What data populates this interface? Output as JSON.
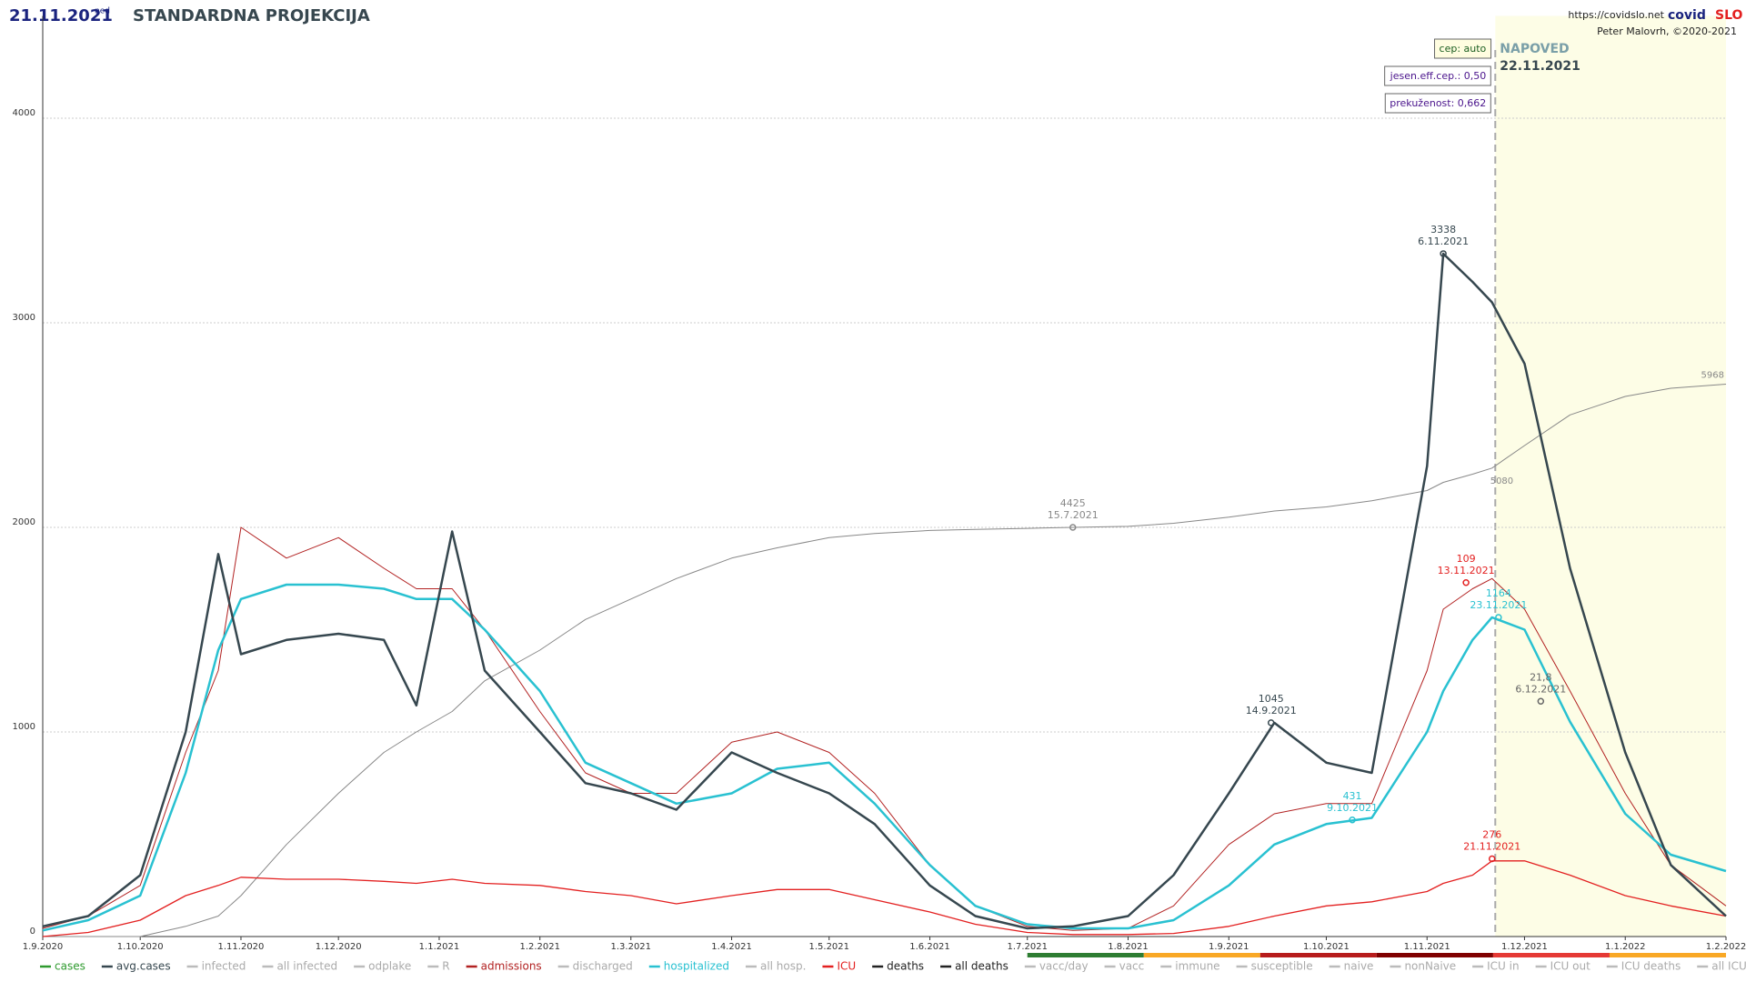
{
  "chart_data": {
    "type": "line",
    "date": "21.11.2021",
    "weekday": "ned",
    "title": "STANDARDNA PROJEKCIJA",
    "url": "https://covidslo.net",
    "brand": [
      "covid",
      "SLO"
    ],
    "author": "Peter Malovrh, ©2020-2021",
    "settings": [
      "cep: auto",
      "jesen.eff.cep.: 0,50",
      "prekuženost: 0,662"
    ],
    "forecast": {
      "label": "NAPOVED",
      "date": "22.11.2021"
    },
    "x": [
      "1.9.2020",
      "15.9.2020",
      "1.10.2020",
      "15.10.2020",
      "25.10.2020",
      "1.11.2020",
      "15.11.2020",
      "1.12.2020",
      "15.12.2020",
      "25.12.2020",
      "5.1.2021",
      "15.1.2021",
      "1.2.2021",
      "15.2.2021",
      "1.3.2021",
      "15.3.2021",
      "1.4.2021",
      "15.4.2021",
      "1.5.2021",
      "15.5.2021",
      "1.6.2021",
      "15.6.2021",
      "1.7.2021",
      "15.7.2021",
      "1.8.2021",
      "15.8.2021",
      "1.9.2021",
      "15.9.2021",
      "1.10.2021",
      "15.10.2021",
      "1.11.2021",
      "6.11.2021",
      "15.11.2021",
      "21.11.2021",
      "1.12.2021",
      "15.12.2021",
      "1.1.2022",
      "15.1.2022",
      "1.2.2022"
    ],
    "series": [
      {
        "name": "all deaths",
        "color": "#888888",
        "width": 1,
        "values": [
          0,
          0,
          0,
          50,
          100,
          200,
          450,
          700,
          900,
          1000,
          1100,
          1250,
          1400,
          1550,
          1650,
          1750,
          1850,
          1900,
          1950,
          1970,
          1985,
          1990,
          1995,
          2000,
          2005,
          2020,
          2050,
          2080,
          2100,
          2130,
          2180,
          2220,
          2260,
          2290,
          2400,
          2550,
          2640,
          2680,
          2700
        ]
      },
      {
        "name": "admissions",
        "color": "#b22222",
        "width": 1,
        "values": [
          40,
          100,
          250,
          900,
          1300,
          2000,
          1850,
          1950,
          1800,
          1700,
          1700,
          1500,
          1100,
          800,
          700,
          700,
          950,
          1000,
          900,
          700,
          350,
          150,
          50,
          30,
          40,
          150,
          450,
          600,
          650,
          650,
          1300,
          1600,
          1700,
          1750,
          1600,
          1200,
          700,
          350,
          150
        ]
      },
      {
        "name": "ICU",
        "color": "#e32020",
        "width": 1.3,
        "values": [
          0,
          20,
          80,
          200,
          250,
          290,
          280,
          280,
          270,
          260,
          280,
          260,
          250,
          220,
          200,
          160,
          200,
          230,
          230,
          180,
          120,
          60,
          20,
          10,
          10,
          15,
          50,
          100,
          150,
          170,
          220,
          260,
          300,
          370,
          370,
          300,
          200,
          150,
          100
        ]
      },
      {
        "name": "hospitalized",
        "color": "#29c1d1",
        "width": 2.5,
        "values": [
          30,
          80,
          200,
          800,
          1400,
          1650,
          1720,
          1720,
          1700,
          1650,
          1650,
          1500,
          1200,
          850,
          750,
          650,
          700,
          820,
          850,
          650,
          350,
          150,
          60,
          40,
          40,
          80,
          250,
          450,
          550,
          580,
          1000,
          1200,
          1450,
          1560,
          1500,
          1050,
          600,
          400,
          320
        ]
      },
      {
        "name": "avg.cases",
        "color": "#36474f",
        "width": 2.5,
        "values": [
          50,
          100,
          300,
          1000,
          1870,
          1380,
          1450,
          1480,
          1450,
          1130,
          1980,
          1300,
          1000,
          750,
          700,
          620,
          900,
          800,
          700,
          550,
          250,
          100,
          40,
          50,
          100,
          300,
          700,
          1045,
          850,
          800,
          2300,
          3338,
          3200,
          3100,
          2800,
          1800,
          900,
          350,
          100
        ]
      }
    ],
    "annotations": [
      {
        "label": "3338",
        "date": "6.11.2021",
        "at": 3338,
        "color": "#36474f"
      },
      {
        "label": "1045",
        "date": "14.9.2021",
        "at": 1045,
        "color": "#36474f"
      },
      {
        "label": "4425",
        "date": "15.7.2021",
        "at": 2000,
        "color": "#888888"
      },
      {
        "label": "431",
        "date": "9.10.2021",
        "at": 570,
        "color": "#29c1d1"
      },
      {
        "label": "109",
        "date": "13.11.2021",
        "at": 1730,
        "color": "#e32020"
      },
      {
        "label": "1164",
        "date": "23.11.2021",
        "at": 1560,
        "color": "#29c1d1"
      },
      {
        "label": "276",
        "date": "21.11.2021",
        "at": 380,
        "color": "#e32020"
      },
      {
        "label": "21,8",
        "date": "6.12.2021",
        "at": 1150,
        "color": "#666666"
      }
    ],
    "end_labels": [
      {
        "label": "5080",
        "date": "21.11.2021",
        "at": 2290
      },
      {
        "label": "5968",
        "date": "1.2.2022",
        "at": 2700
      }
    ],
    "xlim": [
      "1.9.2020",
      "1.2.2022"
    ],
    "xticks": [
      "1.9.2020",
      "1.10.2020",
      "1.11.2020",
      "1.12.2020",
      "1.1.2021",
      "1.2.2021",
      "1.3.2021",
      "1.4.2021",
      "1.5.2021",
      "1.6.2021",
      "1.7.2021",
      "1.8.2021",
      "1.9.2021",
      "1.10.2021",
      "1.11.2021",
      "1.12.2021",
      "1.1.2022",
      "1.2.2022"
    ],
    "ylim": [
      0,
      4500
    ],
    "yticks": [
      0,
      1000,
      2000,
      3000,
      4000
    ],
    "grid": true,
    "legend": [
      {
        "name": "cases",
        "color": "#2e9a2e"
      },
      {
        "name": "avg.cases",
        "color": "#36474f"
      },
      {
        "name": "infected",
        "color": "#bbbbbb"
      },
      {
        "name": "all infected",
        "color": "#bbbbbb"
      },
      {
        "name": "odplake",
        "color": "#bbbbbb"
      },
      {
        "name": "R",
        "color": "#bbbbbb"
      },
      {
        "name": "admissions",
        "color": "#b22222"
      },
      {
        "name": "discharged",
        "color": "#bbbbbb"
      },
      {
        "name": "hospitalized",
        "color": "#29c1d1"
      },
      {
        "name": "all hosp.",
        "color": "#bbbbbb"
      },
      {
        "name": "ICU",
        "color": "#e32020"
      },
      {
        "name": "deaths",
        "color": "#222222"
      },
      {
        "name": "all deaths",
        "color": "#222222"
      },
      {
        "name": "vacc/day",
        "color": "#bbbbbb"
      },
      {
        "name": "vacc",
        "color": "#bbbbbb"
      },
      {
        "name": "immune",
        "color": "#bbbbbb"
      },
      {
        "name": "susceptible",
        "color": "#bbbbbb"
      },
      {
        "name": "naive",
        "color": "#bbbbbb"
      },
      {
        "name": "nonNaive",
        "color": "#bbbbbb"
      },
      {
        "name": "ICU in",
        "color": "#bbbbbb"
      },
      {
        "name": "ICU out",
        "color": "#bbbbbb"
      },
      {
        "name": "ICU deaths",
        "color": "#bbbbbb"
      },
      {
        "name": "all ICU",
        "color": "#bbbbbb"
      }
    ]
  }
}
